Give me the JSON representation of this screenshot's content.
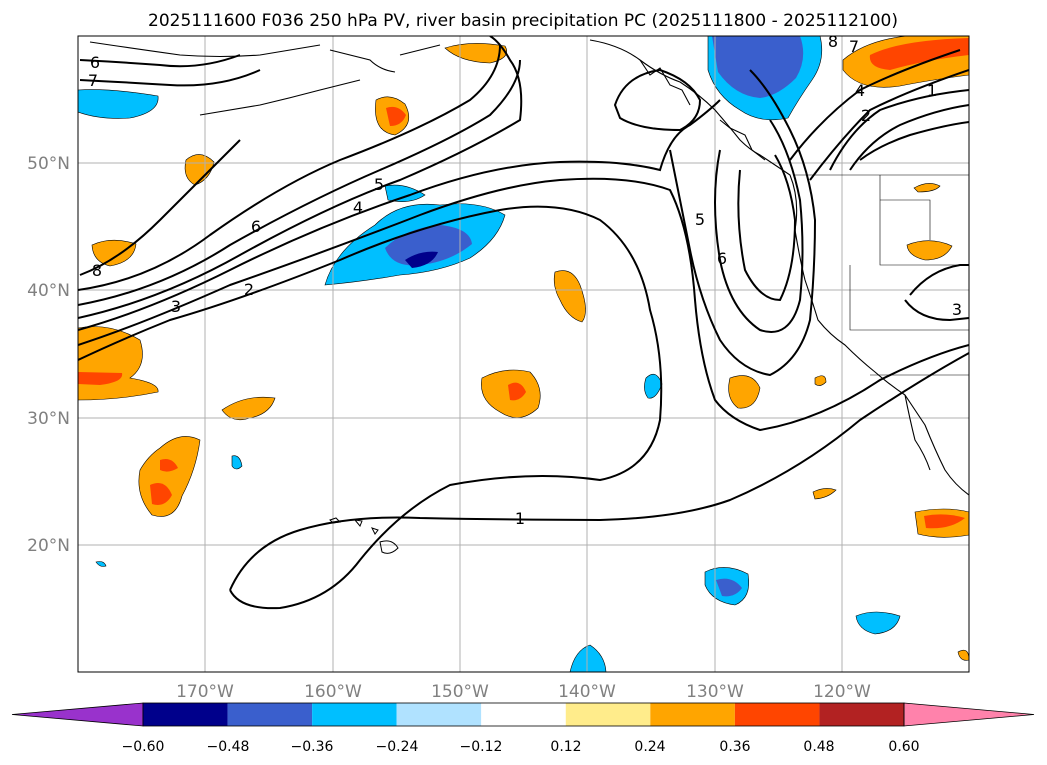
{
  "title": "2025111600 F036 250 hPa PV, river basin precipitation PC (2025111800 - 2025112100)",
  "map": {
    "lat_labels": [
      "50°N",
      "40°N",
      "30°N",
      "20°N"
    ],
    "lon_labels": [
      "170°W",
      "160°W",
      "150°W",
      "140°W",
      "130°W",
      "120°W"
    ]
  },
  "contour_labels": [
    "6",
    "7",
    "8",
    "6",
    "5",
    "4",
    "3",
    "2",
    "1",
    "5",
    "6",
    "1",
    "2",
    "4",
    "3",
    "7",
    "8"
  ],
  "colorbar": {
    "ticks": [
      "−0.60",
      "−0.48",
      "−0.36",
      "−0.24",
      "−0.12",
      "0.12",
      "0.24",
      "0.36",
      "0.48",
      "0.60"
    ],
    "colors": [
      "#9932cc",
      "#00008b",
      "#3a5fcd",
      "#00bfff",
      "#b0e2ff",
      "#ffffff",
      "#ffec8b",
      "#ffa500",
      "#ff4500",
      "#b22222",
      "#ff82ab"
    ]
  },
  "colors": {
    "pos_light": "#ffa500",
    "pos_mid": "#ff4500",
    "neg_light": "#00bfff",
    "neg_mid": "#3a5fcd",
    "neg_dark": "#00008b",
    "grid": "#b0b0b0",
    "contour": "#000000"
  }
}
